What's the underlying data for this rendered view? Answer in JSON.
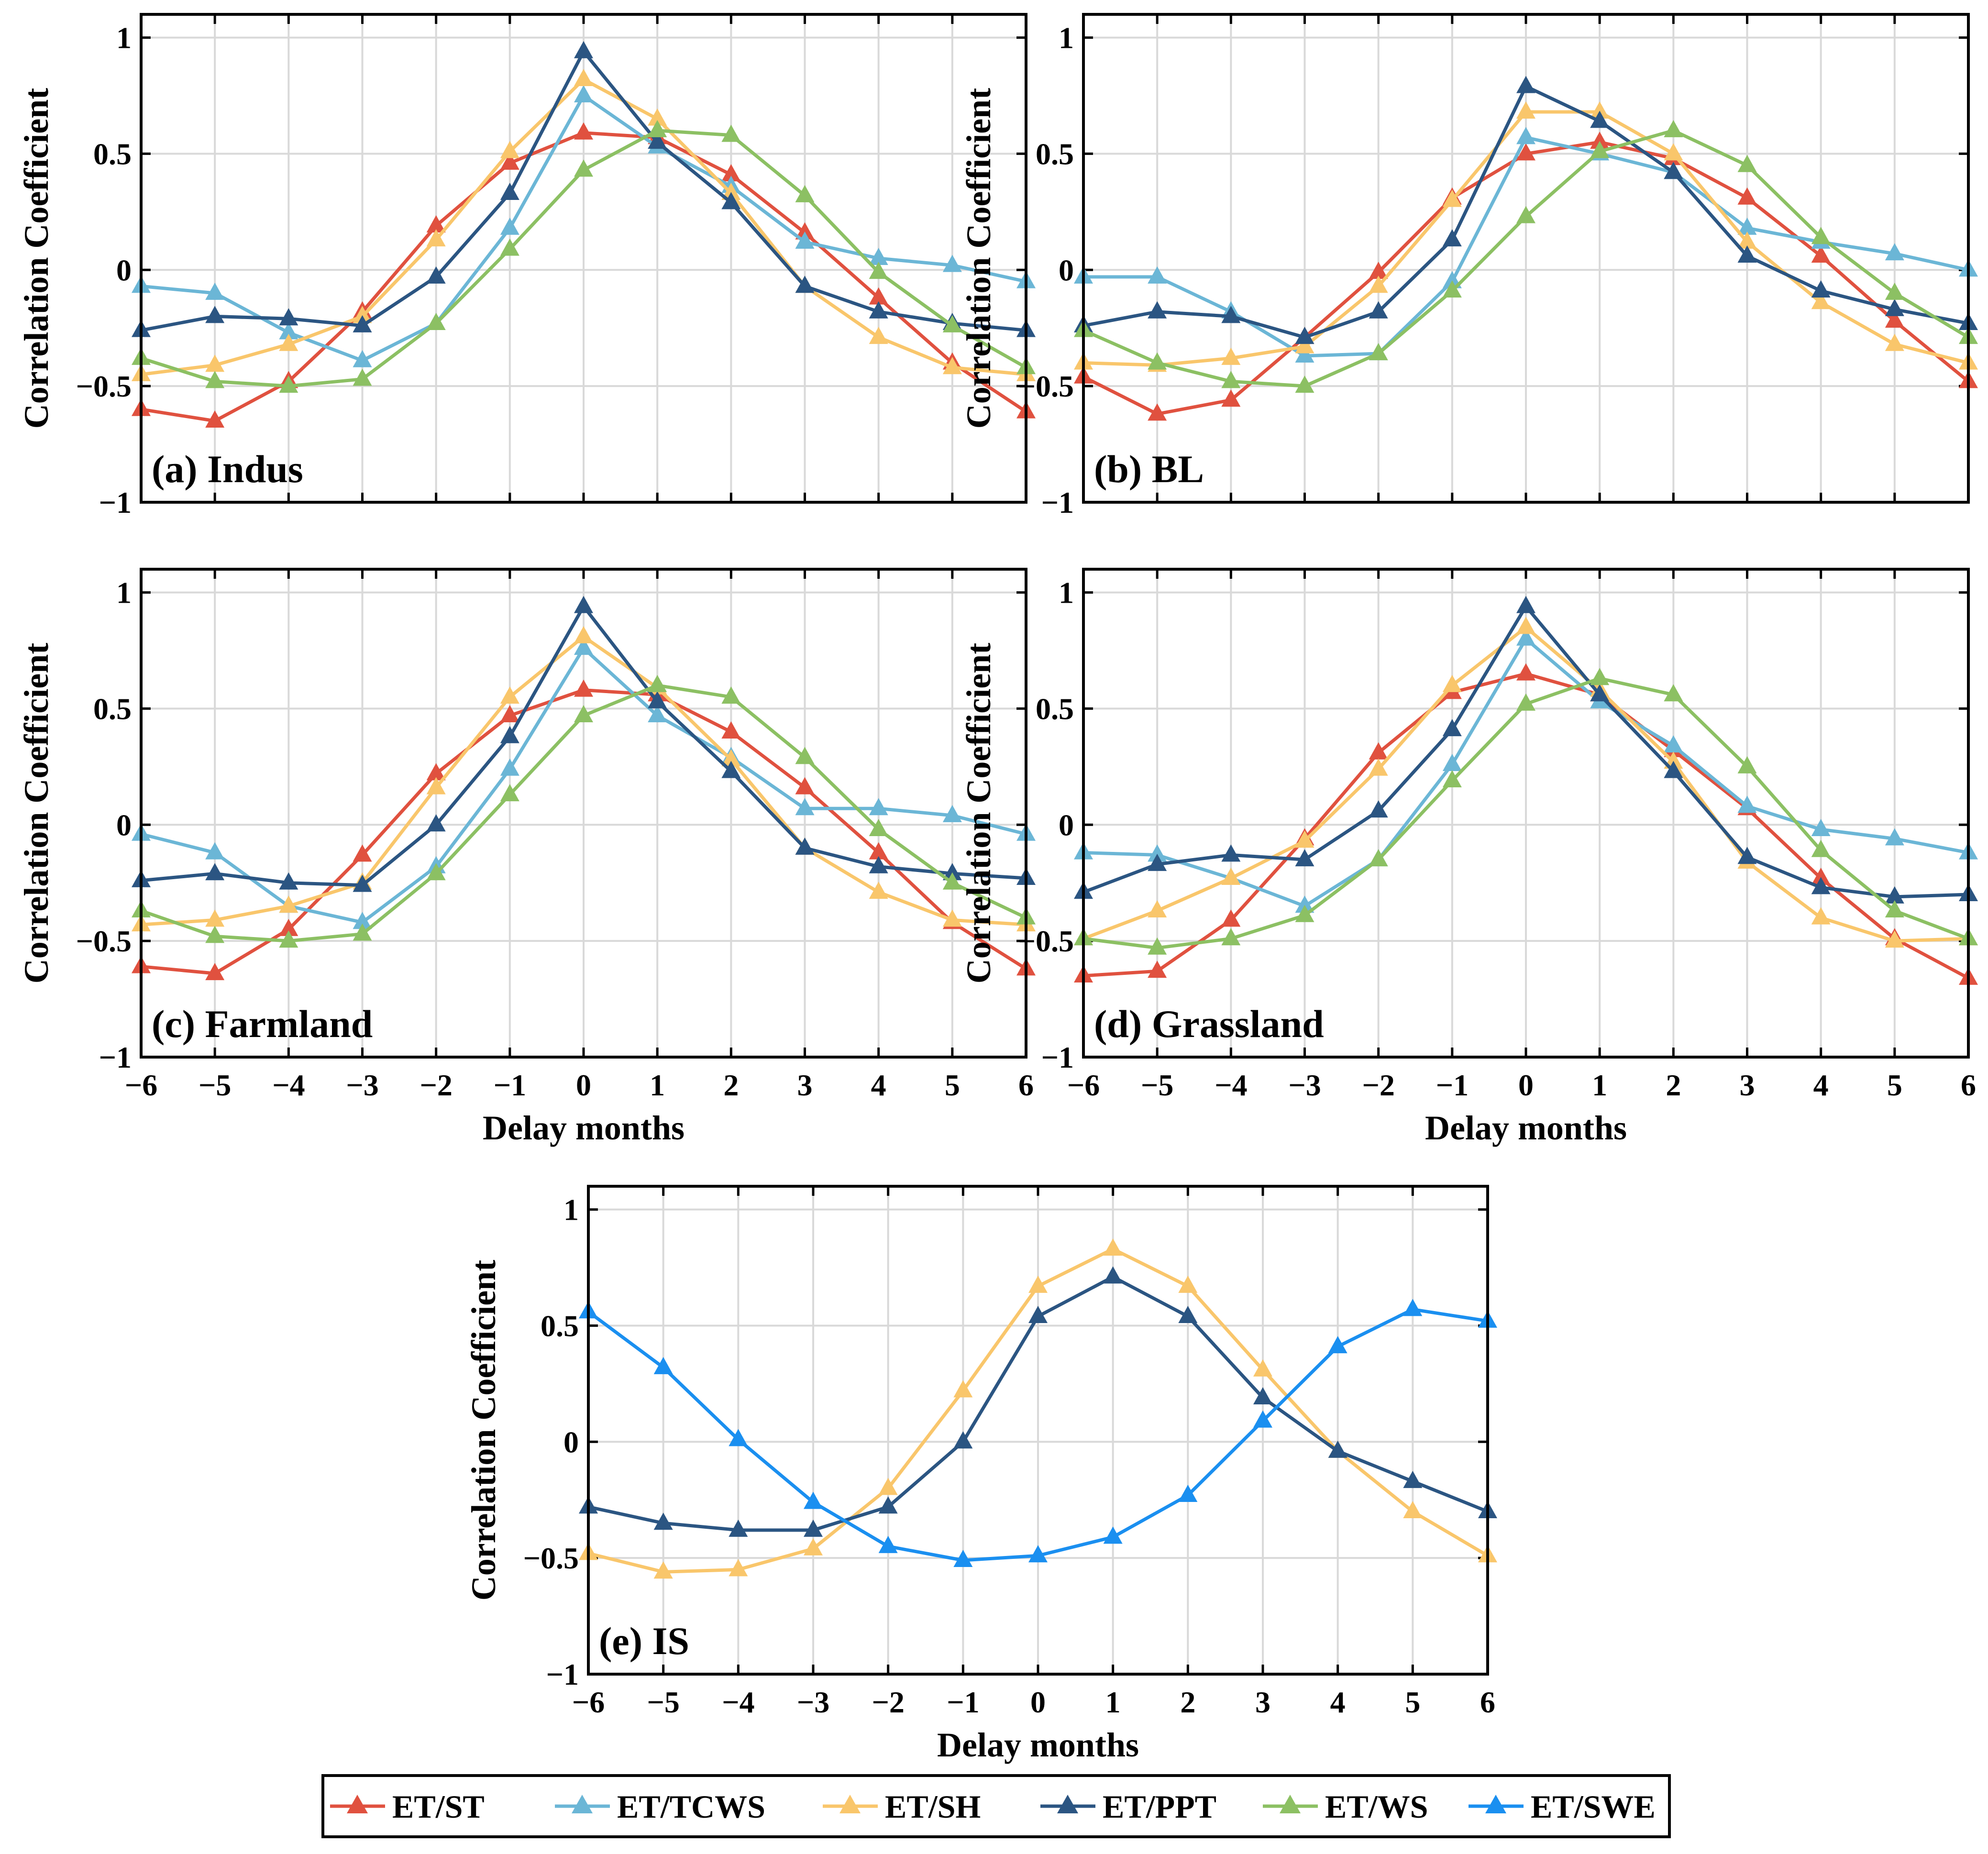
{
  "chart_data": {
    "type": "line",
    "x": [
      -6,
      -5,
      -4,
      -3,
      -2,
      -1,
      0,
      1,
      2,
      3,
      4,
      5,
      6
    ],
    "xticks": [
      "−6",
      "−5",
      "−4",
      "−3",
      "−2",
      "−1",
      "0",
      "1",
      "2",
      "3",
      "4",
      "5",
      "6"
    ],
    "yticks": [
      "−1",
      "−0.5",
      "0",
      "0.5",
      "1"
    ],
    "xlim": [
      -6,
      6
    ],
    "ylim": [
      -1,
      1.1
    ],
    "xlabel": "Delay months",
    "ylabel": "Correlation Coefficient",
    "grid": true,
    "legend": {
      "position": "bottom-center",
      "entries": [
        {
          "key": "ST",
          "label": "ET/ST",
          "color": "#E0513F"
        },
        {
          "key": "TCWS",
          "label": "ET/TCWS",
          "color": "#6BB6D6"
        },
        {
          "key": "SH",
          "label": "ET/SH",
          "color": "#F9C66B"
        },
        {
          "key": "PPT",
          "label": "ET/PPT",
          "color": "#2B5582"
        },
        {
          "key": "WS",
          "label": "ET/WS",
          "color": "#8CC063"
        },
        {
          "key": "SWE",
          "label": "ET/SWE",
          "color": "#1A8FF0"
        }
      ]
    },
    "panels": [
      {
        "label": "(a) Indus",
        "series": [
          {
            "key": "ST",
            "values": [
              -0.6,
              -0.65,
              -0.48,
              -0.18,
              0.19,
              0.46,
              0.59,
              0.57,
              0.41,
              0.16,
              -0.12,
              -0.4,
              -0.61
            ]
          },
          {
            "key": "TCWS",
            "values": [
              -0.07,
              -0.1,
              -0.27,
              -0.39,
              -0.23,
              0.18,
              0.75,
              0.53,
              0.36,
              0.12,
              0.05,
              0.02,
              -0.05
            ]
          },
          {
            "key": "SH",
            "values": [
              -0.45,
              -0.41,
              -0.32,
              -0.2,
              0.13,
              0.51,
              0.82,
              0.65,
              0.33,
              -0.07,
              -0.29,
              -0.42,
              -0.45
            ]
          },
          {
            "key": "PPT",
            "values": [
              -0.26,
              -0.2,
              -0.21,
              -0.24,
              -0.03,
              0.33,
              0.94,
              0.55,
              0.29,
              -0.07,
              -0.18,
              -0.23,
              -0.26
            ]
          },
          {
            "key": "WS",
            "values": [
              -0.38,
              -0.48,
              -0.5,
              -0.47,
              -0.23,
              0.09,
              0.43,
              0.6,
              0.58,
              0.32,
              -0.01,
              -0.24,
              -0.42
            ]
          }
        ]
      },
      {
        "label": "(b) BL",
        "series": [
          {
            "key": "ST",
            "values": [
              -0.46,
              -0.62,
              -0.56,
              -0.29,
              -0.01,
              0.31,
              0.5,
              0.55,
              0.48,
              0.31,
              0.06,
              -0.22,
              -0.48
            ]
          },
          {
            "key": "TCWS",
            "values": [
              -0.03,
              -0.03,
              -0.18,
              -0.37,
              -0.36,
              -0.05,
              0.57,
              0.5,
              0.42,
              0.18,
              0.12,
              0.07,
              0.0
            ]
          },
          {
            "key": "SH",
            "values": [
              -0.4,
              -0.41,
              -0.38,
              -0.33,
              -0.07,
              0.3,
              0.68,
              0.68,
              0.5,
              0.12,
              -0.14,
              -0.32,
              -0.4
            ]
          },
          {
            "key": "PPT",
            "values": [
              -0.24,
              -0.18,
              -0.2,
              -0.29,
              -0.18,
              0.13,
              0.79,
              0.64,
              0.42,
              0.06,
              -0.09,
              -0.17,
              -0.23
            ]
          },
          {
            "key": "WS",
            "values": [
              -0.26,
              -0.4,
              -0.48,
              -0.5,
              -0.36,
              -0.09,
              0.23,
              0.51,
              0.6,
              0.45,
              0.14,
              -0.1,
              -0.29
            ]
          }
        ]
      },
      {
        "label": "(c) Farmland",
        "series": [
          {
            "key": "ST",
            "values": [
              -0.61,
              -0.64,
              -0.45,
              -0.13,
              0.22,
              0.47,
              0.58,
              0.56,
              0.4,
              0.16,
              -0.12,
              -0.42,
              -0.62
            ]
          },
          {
            "key": "TCWS",
            "values": [
              -0.04,
              -0.12,
              -0.35,
              -0.42,
              -0.18,
              0.24,
              0.76,
              0.47,
              0.29,
              0.07,
              0.07,
              0.04,
              -0.04
            ]
          },
          {
            "key": "SH",
            "values": [
              -0.43,
              -0.41,
              -0.35,
              -0.25,
              0.16,
              0.55,
              0.81,
              0.59,
              0.28,
              -0.1,
              -0.29,
              -0.41,
              -0.43
            ]
          },
          {
            "key": "PPT",
            "values": [
              -0.24,
              -0.21,
              -0.25,
              -0.26,
              0.0,
              0.38,
              0.94,
              0.53,
              0.23,
              -0.1,
              -0.18,
              -0.21,
              -0.23
            ]
          },
          {
            "key": "WS",
            "values": [
              -0.37,
              -0.48,
              -0.5,
              -0.47,
              -0.21,
              0.13,
              0.47,
              0.6,
              0.55,
              0.29,
              -0.02,
              -0.25,
              -0.4
            ]
          }
        ]
      },
      {
        "label": "(d) Grassland",
        "series": [
          {
            "key": "ST",
            "values": [
              -0.65,
              -0.63,
              -0.41,
              -0.06,
              0.31,
              0.57,
              0.65,
              0.56,
              0.32,
              0.07,
              -0.23,
              -0.49,
              -0.66
            ]
          },
          {
            "key": "TCWS",
            "values": [
              -0.12,
              -0.13,
              -0.23,
              -0.35,
              -0.15,
              0.26,
              0.8,
              0.53,
              0.34,
              0.08,
              -0.02,
              -0.06,
              -0.12
            ]
          },
          {
            "key": "SH",
            "values": [
              -0.49,
              -0.37,
              -0.23,
              -0.07,
              0.24,
              0.6,
              0.85,
              0.58,
              0.27,
              -0.16,
              -0.4,
              -0.5,
              -0.49
            ]
          },
          {
            "key": "PPT",
            "values": [
              -0.29,
              -0.17,
              -0.13,
              -0.15,
              0.06,
              0.41,
              0.94,
              0.56,
              0.23,
              -0.14,
              -0.27,
              -0.31,
              -0.3
            ]
          },
          {
            "key": "WS",
            "values": [
              -0.49,
              -0.53,
              -0.49,
              -0.39,
              -0.15,
              0.19,
              0.52,
              0.63,
              0.56,
              0.25,
              -0.11,
              -0.37,
              -0.49
            ]
          }
        ]
      },
      {
        "label": "(e) IS",
        "series": [
          {
            "key": "SH",
            "values": [
              -0.48,
              -0.56,
              -0.55,
              -0.46,
              -0.2,
              0.22,
              0.67,
              0.83,
              0.67,
              0.31,
              -0.04,
              -0.3,
              -0.49
            ]
          },
          {
            "key": "PPT",
            "values": [
              -0.28,
              -0.35,
              -0.38,
              -0.38,
              -0.28,
              0.0,
              0.54,
              0.71,
              0.54,
              0.19,
              -0.04,
              -0.17,
              -0.3
            ]
          },
          {
            "key": "SWE",
            "values": [
              0.56,
              0.32,
              0.01,
              -0.26,
              -0.45,
              -0.51,
              -0.49,
              -0.41,
              -0.23,
              0.09,
              0.41,
              0.57,
              0.52
            ]
          }
        ]
      }
    ]
  }
}
